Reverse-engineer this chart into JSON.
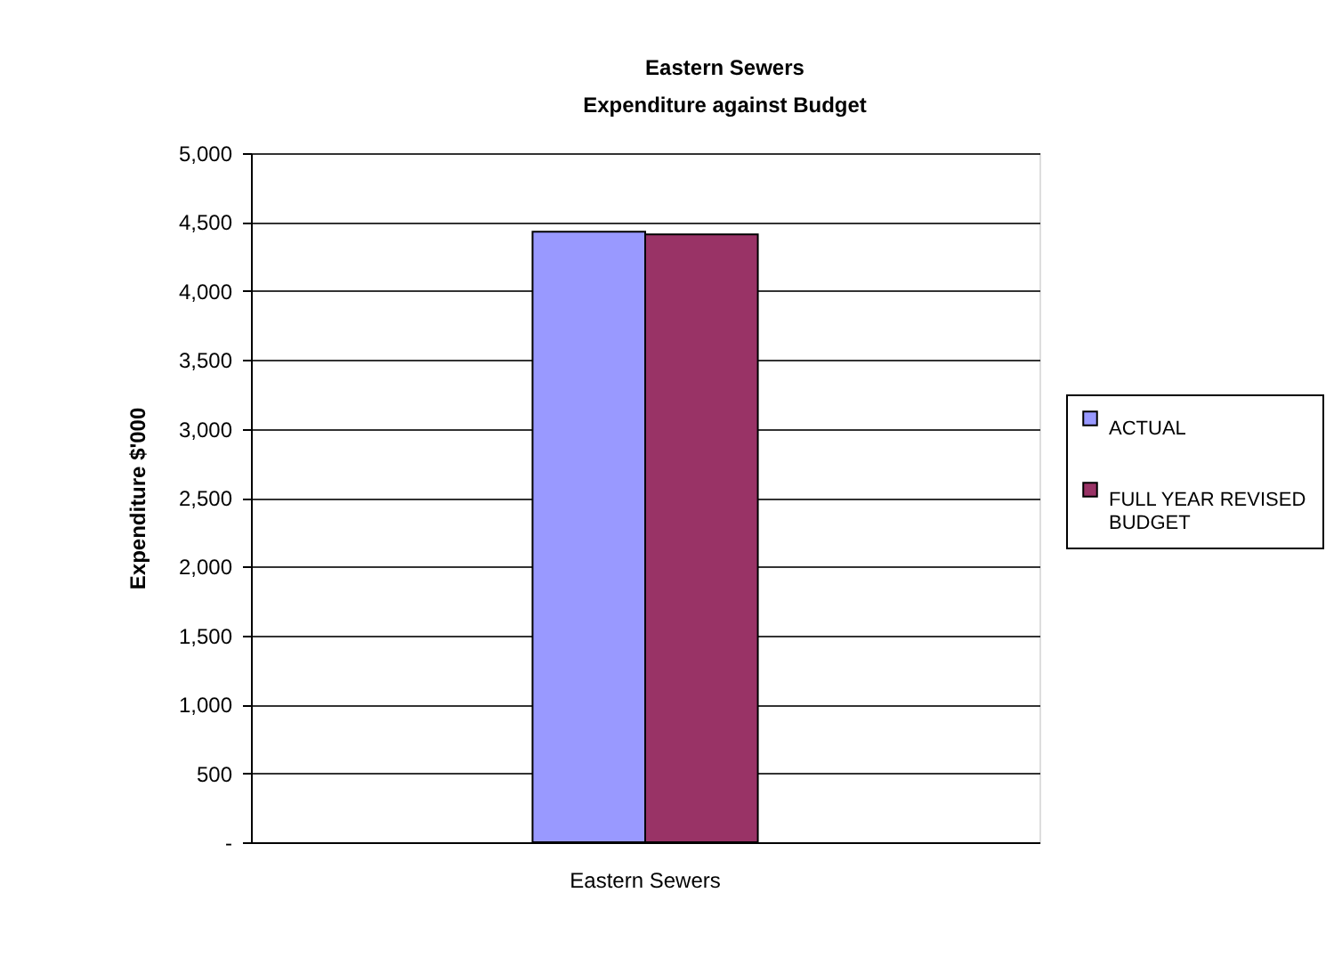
{
  "chart_data": {
    "type": "bar",
    "title": "Eastern Sewers",
    "subtitle": "Expenditure against Budget",
    "ylabel": "Expenditure $'000",
    "categories": [
      "Eastern Sewers"
    ],
    "series": [
      {
        "name": "ACTUAL",
        "color": "#9999ff",
        "values": [
          4430
        ]
      },
      {
        "name": "FULL YEAR REVISED BUDGET",
        "color": "#993366",
        "values": [
          4410
        ]
      }
    ],
    "ylim": [
      0,
      5000
    ],
    "yticks": [
      {
        "value": 0,
        "label": "-"
      },
      500,
      {
        "value": 1000,
        "label": "1,000"
      },
      {
        "value": 1500,
        "label": "1,500"
      },
      {
        "value": 2000,
        "label": "2,000"
      },
      {
        "value": 2500,
        "label": "2,500"
      },
      {
        "value": 3000,
        "label": "3,000"
      },
      {
        "value": 3500,
        "label": "3,500"
      },
      {
        "value": 4000,
        "label": "4,000"
      },
      {
        "value": 4500,
        "label": "4,500"
      },
      {
        "value": 5000,
        "label": "5,000"
      }
    ],
    "grid": "y",
    "legend": "right"
  }
}
